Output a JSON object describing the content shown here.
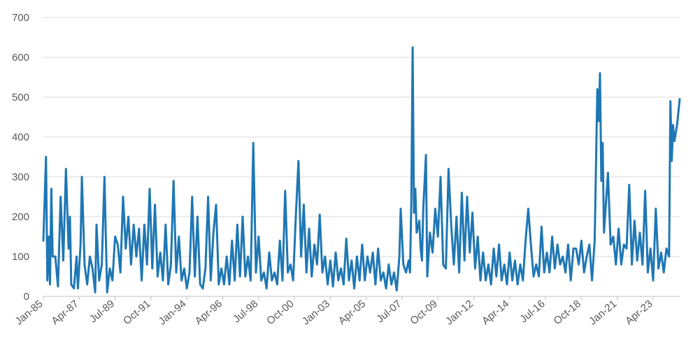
{
  "chart_data": {
    "type": "line",
    "title": "",
    "xlabel": "",
    "ylabel": "",
    "ylim": [
      0,
      700
    ],
    "yticks": [
      0,
      100,
      200,
      300,
      400,
      500,
      600,
      700
    ],
    "x_tick_labels": [
      "Jan-85",
      "Apr-87",
      "Jul-89",
      "Oct-91",
      "Jan-94",
      "Apr-96",
      "Jul-98",
      "Oct-00",
      "Jan-03",
      "Apr-05",
      "Jul-07",
      "Oct-09",
      "Jan-12",
      "Apr-14",
      "Jul-16",
      "Oct-18",
      "Jan-21",
      "Apr-23"
    ],
    "x_start": "1985-01",
    "x_end": "2024-12",
    "grid": "horizontal",
    "legend": "none",
    "colors": {
      "series": "#1f77b4",
      "grid": "#d9d9d9",
      "axis": "#bfbfbf",
      "tick_text": "#595959"
    },
    "series": [
      {
        "points": [
          [
            "1985-01",
            140
          ],
          [
            "1985-03",
            350
          ],
          [
            "1985-04",
            40
          ],
          [
            "1985-05",
            150
          ],
          [
            "1985-06",
            30
          ],
          [
            "1985-07",
            270
          ],
          [
            "1985-08",
            100
          ],
          [
            "1985-10",
            100
          ],
          [
            "1985-12",
            25
          ],
          [
            "1986-02",
            250
          ],
          [
            "1986-04",
            90
          ],
          [
            "1986-06",
            320
          ],
          [
            "1986-08",
            120
          ],
          [
            "1986-09",
            200
          ],
          [
            "1986-10",
            30
          ],
          [
            "1986-12",
            20
          ],
          [
            "1987-02",
            100
          ],
          [
            "1987-03",
            20
          ],
          [
            "1987-05",
            130
          ],
          [
            "1987-06",
            300
          ],
          [
            "1987-08",
            80
          ],
          [
            "1987-10",
            30
          ],
          [
            "1987-12",
            100
          ],
          [
            "1988-02",
            70
          ],
          [
            "1988-04",
            10
          ],
          [
            "1988-05",
            180
          ],
          [
            "1988-07",
            40
          ],
          [
            "1988-09",
            80
          ],
          [
            "1988-11",
            300
          ],
          [
            "1989-01",
            10
          ],
          [
            "1989-03",
            70
          ],
          [
            "1989-05",
            40
          ],
          [
            "1989-07",
            150
          ],
          [
            "1989-09",
            130
          ],
          [
            "1989-11",
            60
          ],
          [
            "1990-01",
            250
          ],
          [
            "1990-03",
            120
          ],
          [
            "1990-05",
            200
          ],
          [
            "1990-07",
            80
          ],
          [
            "1990-09",
            180
          ],
          [
            "1990-11",
            100
          ],
          [
            "1991-01",
            170
          ],
          [
            "1991-03",
            40
          ],
          [
            "1991-05",
            180
          ],
          [
            "1991-07",
            80
          ],
          [
            "1991-09",
            270
          ],
          [
            "1991-11",
            70
          ],
          [
            "1992-01",
            230
          ],
          [
            "1992-03",
            50
          ],
          [
            "1992-05",
            110
          ],
          [
            "1992-07",
            40
          ],
          [
            "1992-09",
            180
          ],
          [
            "1992-11",
            30
          ],
          [
            "1993-01",
            80
          ],
          [
            "1993-03",
            290
          ],
          [
            "1993-05",
            60
          ],
          [
            "1993-07",
            150
          ],
          [
            "1993-09",
            40
          ],
          [
            "1993-11",
            70
          ],
          [
            "1994-01",
            20
          ],
          [
            "1994-03",
            60
          ],
          [
            "1994-05",
            250
          ],
          [
            "1994-07",
            50
          ],
          [
            "1994-09",
            200
          ],
          [
            "1994-11",
            30
          ],
          [
            "1995-01",
            20
          ],
          [
            "1995-03",
            70
          ],
          [
            "1995-05",
            250
          ],
          [
            "1995-07",
            40
          ],
          [
            "1995-09",
            160
          ],
          [
            "1995-11",
            230
          ],
          [
            "1996-01",
            30
          ],
          [
            "1996-03",
            70
          ],
          [
            "1996-05",
            30
          ],
          [
            "1996-07",
            100
          ],
          [
            "1996-09",
            30
          ],
          [
            "1996-11",
            140
          ],
          [
            "1997-01",
            40
          ],
          [
            "1997-03",
            180
          ],
          [
            "1997-05",
            50
          ],
          [
            "1997-07",
            200
          ],
          [
            "1997-09",
            50
          ],
          [
            "1997-11",
            100
          ],
          [
            "1998-01",
            40
          ],
          [
            "1998-03",
            385
          ],
          [
            "1998-05",
            60
          ],
          [
            "1998-07",
            150
          ],
          [
            "1998-09",
            40
          ],
          [
            "1998-11",
            60
          ],
          [
            "1999-01",
            20
          ],
          [
            "1999-03",
            110
          ],
          [
            "1999-05",
            40
          ],
          [
            "1999-07",
            60
          ],
          [
            "1999-09",
            30
          ],
          [
            "1999-11",
            140
          ],
          [
            "2000-01",
            40
          ],
          [
            "2000-03",
            265
          ],
          [
            "2000-05",
            60
          ],
          [
            "2000-07",
            80
          ],
          [
            "2000-09",
            40
          ],
          [
            "2000-11",
            200
          ],
          [
            "2001-01",
            340
          ],
          [
            "2001-03",
            100
          ],
          [
            "2001-05",
            230
          ],
          [
            "2001-07",
            60
          ],
          [
            "2001-09",
            170
          ],
          [
            "2001-11",
            50
          ],
          [
            "2002-01",
            130
          ],
          [
            "2002-03",
            80
          ],
          [
            "2002-05",
            205
          ],
          [
            "2002-07",
            60
          ],
          [
            "2002-09",
            100
          ],
          [
            "2002-11",
            30
          ],
          [
            "2003-01",
            90
          ],
          [
            "2003-03",
            25
          ],
          [
            "2003-05",
            110
          ],
          [
            "2003-07",
            40
          ],
          [
            "2003-09",
            70
          ],
          [
            "2003-11",
            30
          ],
          [
            "2004-01",
            145
          ],
          [
            "2004-03",
            40
          ],
          [
            "2004-05",
            90
          ],
          [
            "2004-07",
            20
          ],
          [
            "2004-09",
            100
          ],
          [
            "2004-11",
            40
          ],
          [
            "2005-01",
            130
          ],
          [
            "2005-03",
            40
          ],
          [
            "2005-05",
            100
          ],
          [
            "2005-07",
            60
          ],
          [
            "2005-09",
            110
          ],
          [
            "2005-11",
            30
          ],
          [
            "2006-01",
            120
          ],
          [
            "2006-03",
            40
          ],
          [
            "2006-05",
            60
          ],
          [
            "2006-07",
            20
          ],
          [
            "2006-09",
            80
          ],
          [
            "2006-11",
            30
          ],
          [
            "2007-01",
            60
          ],
          [
            "2007-03",
            15
          ],
          [
            "2007-05",
            100
          ],
          [
            "2007-06",
            220
          ],
          [
            "2007-08",
            80
          ],
          [
            "2007-10",
            60
          ],
          [
            "2007-12",
            90
          ],
          [
            "2008-01",
            60
          ],
          [
            "2008-02",
            240
          ],
          [
            "2008-03",
            625
          ],
          [
            "2008-04",
            210
          ],
          [
            "2008-05",
            270
          ],
          [
            "2008-06",
            160
          ],
          [
            "2008-08",
            190
          ],
          [
            "2008-09",
            120
          ],
          [
            "2008-10",
            90
          ],
          [
            "2008-11",
            220
          ],
          [
            "2009-01",
            355
          ],
          [
            "2009-02",
            50
          ],
          [
            "2009-04",
            160
          ],
          [
            "2009-06",
            110
          ],
          [
            "2009-08",
            220
          ],
          [
            "2009-10",
            150
          ],
          [
            "2009-12",
            300
          ],
          [
            "2010-02",
            80
          ],
          [
            "2010-04",
            70
          ],
          [
            "2010-06",
            320
          ],
          [
            "2010-08",
            180
          ],
          [
            "2010-10",
            80
          ],
          [
            "2010-12",
            200
          ],
          [
            "2011-02",
            60
          ],
          [
            "2011-04",
            260
          ],
          [
            "2011-06",
            90
          ],
          [
            "2011-08",
            250
          ],
          [
            "2011-10",
            110
          ],
          [
            "2011-12",
            210
          ],
          [
            "2012-02",
            70
          ],
          [
            "2012-04",
            150
          ],
          [
            "2012-06",
            40
          ],
          [
            "2012-08",
            110
          ],
          [
            "2012-10",
            40
          ],
          [
            "2012-12",
            80
          ],
          [
            "2013-02",
            30
          ],
          [
            "2013-04",
            120
          ],
          [
            "2013-06",
            50
          ],
          [
            "2013-08",
            130
          ],
          [
            "2013-10",
            40
          ],
          [
            "2013-12",
            80
          ],
          [
            "2014-02",
            30
          ],
          [
            "2014-04",
            110
          ],
          [
            "2014-06",
            40
          ],
          [
            "2014-08",
            90
          ],
          [
            "2014-10",
            30
          ],
          [
            "2014-12",
            80
          ],
          [
            "2015-02",
            40
          ],
          [
            "2015-04",
            140
          ],
          [
            "2015-06",
            220
          ],
          [
            "2015-08",
            130
          ],
          [
            "2015-10",
            50
          ],
          [
            "2015-12",
            80
          ],
          [
            "2016-02",
            50
          ],
          [
            "2016-04",
            175
          ],
          [
            "2016-06",
            60
          ],
          [
            "2016-08",
            110
          ],
          [
            "2016-10",
            60
          ],
          [
            "2016-12",
            150
          ],
          [
            "2017-02",
            70
          ],
          [
            "2017-04",
            130
          ],
          [
            "2017-06",
            80
          ],
          [
            "2017-08",
            100
          ],
          [
            "2017-10",
            60
          ],
          [
            "2017-12",
            130
          ],
          [
            "2018-02",
            40
          ],
          [
            "2018-04",
            120
          ],
          [
            "2018-06",
            120
          ],
          [
            "2018-08",
            80
          ],
          [
            "2018-10",
            140
          ],
          [
            "2018-12",
            60
          ],
          [
            "2019-02",
            100
          ],
          [
            "2019-04",
            130
          ],
          [
            "2019-06",
            40
          ],
          [
            "2019-08",
            140
          ],
          [
            "2019-10",
            520
          ],
          [
            "2019-11",
            440
          ],
          [
            "2019-12",
            560
          ],
          [
            "2020-01",
            290
          ],
          [
            "2020-02",
            385
          ],
          [
            "2020-03",
            160
          ],
          [
            "2020-04",
            210
          ],
          [
            "2020-06",
            310
          ],
          [
            "2020-08",
            130
          ],
          [
            "2020-10",
            150
          ],
          [
            "2020-12",
            80
          ],
          [
            "2021-02",
            170
          ],
          [
            "2021-04",
            80
          ],
          [
            "2021-06",
            130
          ],
          [
            "2021-08",
            120
          ],
          [
            "2021-10",
            280
          ],
          [
            "2021-12",
            80
          ],
          [
            "2022-02",
            190
          ],
          [
            "2022-04",
            90
          ],
          [
            "2022-06",
            160
          ],
          [
            "2022-08",
            80
          ],
          [
            "2022-10",
            265
          ],
          [
            "2022-12",
            60
          ],
          [
            "2023-02",
            120
          ],
          [
            "2023-04",
            40
          ],
          [
            "2023-06",
            220
          ],
          [
            "2023-08",
            70
          ],
          [
            "2023-10",
            110
          ],
          [
            "2023-12",
            60
          ],
          [
            "2024-02",
            120
          ],
          [
            "2024-04",
            100
          ],
          [
            "2024-05",
            490
          ],
          [
            "2024-06",
            340
          ],
          [
            "2024-07",
            430
          ],
          [
            "2024-08",
            390
          ],
          [
            "2024-10",
            430
          ],
          [
            "2024-12",
            495
          ]
        ]
      }
    ]
  }
}
